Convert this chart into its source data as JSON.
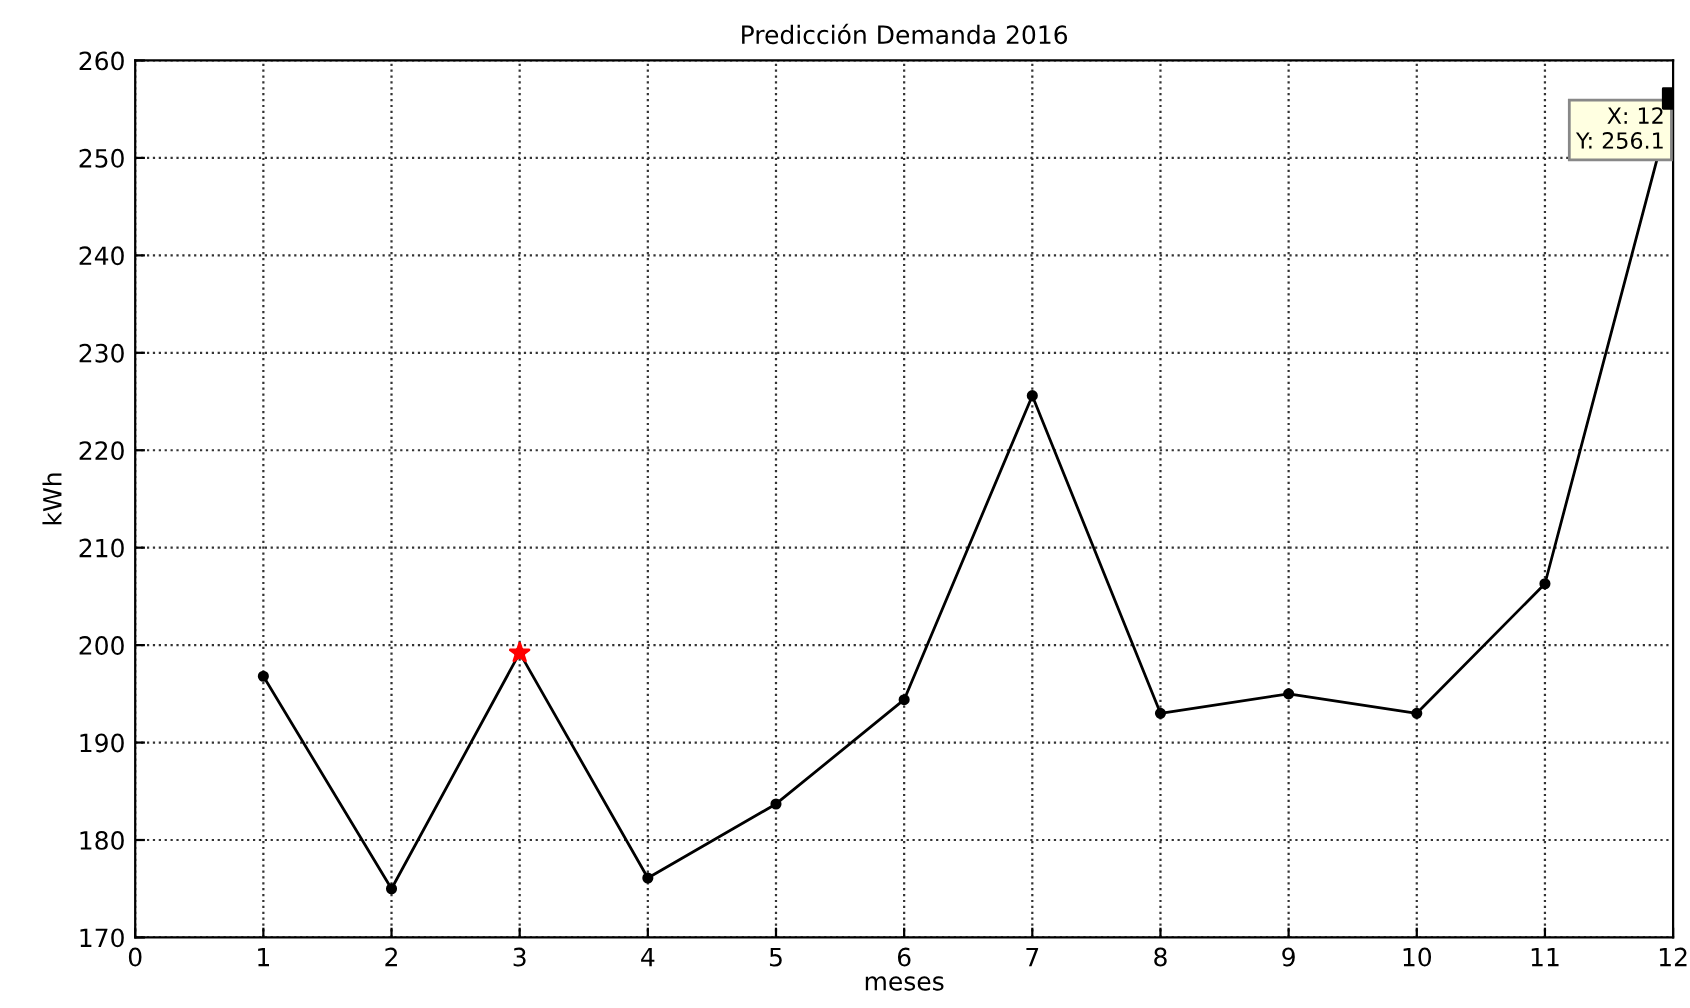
{
  "chart_data": {
    "type": "line",
    "title": "Predicción Demanda 2016",
    "xlabel": "meses",
    "ylabel": "kWh",
    "x": [
      1,
      2,
      3,
      4,
      5,
      6,
      7,
      8,
      9,
      10,
      11,
      12
    ],
    "series": [
      {
        "color": "#000000",
        "values": [
          196.8,
          175.0,
          199.2,
          176.1,
          183.7,
          194.4,
          225.6,
          193.0,
          195.0,
          193.0,
          206.3,
          256.1
        ],
        "marker": "circle"
      },
      {
        "type": "scatter",
        "color": "#ff0000",
        "x": [
          3
        ],
        "values": [
          199.2
        ],
        "marker": "star"
      },
      {
        "type": "scatter",
        "color": "#000000",
        "x": [
          12
        ],
        "values": [
          256.1
        ],
        "marker": "square"
      }
    ],
    "annotations": [
      {
        "text": "X: 12\nY: 256.1",
        "x": 12,
        "y": 256.1
      }
    ],
    "xlim": [
      0,
      12
    ],
    "xticks": [
      0,
      1,
      2,
      3,
      4,
      5,
      6,
      7,
      8,
      9,
      10,
      11,
      12
    ],
    "ylim": [
      170,
      260
    ],
    "yticks": [
      170,
      180,
      190,
      200,
      210,
      220,
      230,
      240,
      250,
      260
    ],
    "grid": true,
    "line_style": "solid"
  }
}
